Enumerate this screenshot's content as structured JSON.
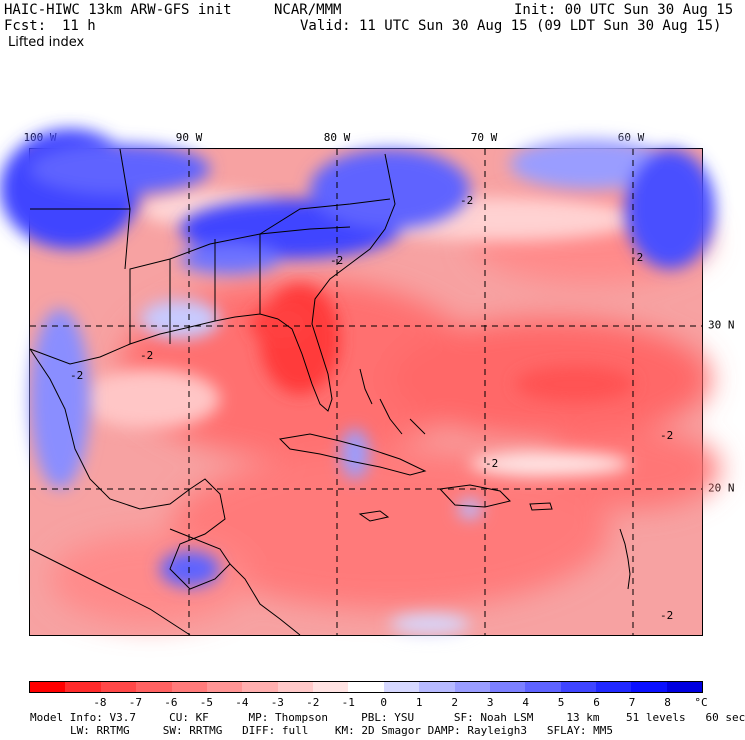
{
  "header": {
    "title": "HAIC-HIWC 13km ARW-GFS init",
    "org": "NCAR/MMM",
    "init": "Init: 00 UTC Sun 30 Aug 15",
    "fcst_label": "Fcst:",
    "fcst_value": "11 h",
    "valid": "Valid: 11 UTC Sun 30 Aug 15 (09 LDT Sun 30 Aug 15)",
    "field": "Lifted index"
  },
  "axes": {
    "lon_labels": [
      "100 W",
      "90 W",
      "80 W",
      "70 W",
      "60 W"
    ],
    "lat_labels": [
      "30 N",
      "20 N"
    ]
  },
  "colorbar": {
    "tick_labels": [
      "-8",
      "-7",
      "-6",
      "-5",
      "-4",
      "-3",
      "-2",
      "-1",
      "0",
      "1",
      "2",
      "3",
      "4",
      "5",
      "6",
      "7",
      "8"
    ],
    "unit": "°C",
    "colors": [
      "#ff0000",
      "#ff2b2b",
      "#ff4848",
      "#ff6262",
      "#ff7b7b",
      "#ff9595",
      "#ffafaf",
      "#ffc9c9",
      "#ffe3e3",
      "#ffffff",
      "#d6d8ff",
      "#b7baff",
      "#9a9dff",
      "#7c80ff",
      "#5e63ff",
      "#3f45ff",
      "#2129ff",
      "#0a10ff",
      "#0000e0"
    ]
  },
  "footer": {
    "line1": "Model Info: V3.7     CU: KF      MP: Thompson     PBL: YSU      SF: Noah LSM     13 km    51 levels   60 sec",
    "line2": "LW: RRTMG     SW: RRTMG   DIFF: full    KM: 2D Smagor DAMP: Rayleigh3   SFLAY: MM5"
  },
  "map_labels": {
    "contour_minus2": "-2"
  }
}
